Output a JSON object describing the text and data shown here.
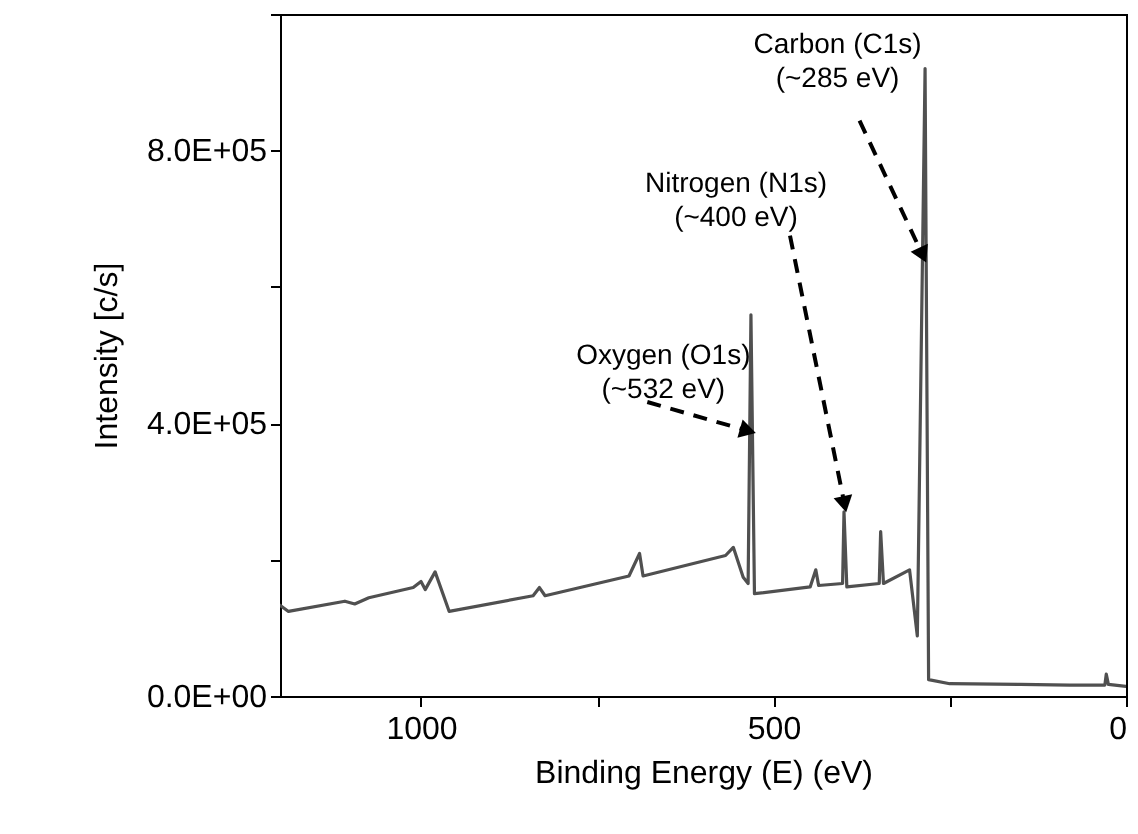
{
  "chart_data": {
    "type": "line",
    "xlabel": "Binding Energy (E) (eV)",
    "ylabel": "Intensity [c/s]",
    "color": "#505050",
    "x": [
      1200,
      1188,
      1108,
      1094,
      1074,
      1011,
      1000,
      994,
      980,
      960,
      841,
      832,
      824,
      705,
      690,
      685,
      568,
      557,
      543,
      536,
      532,
      527,
      448,
      440,
      436,
      402,
      400,
      396,
      350,
      348,
      344,
      307,
      296,
      285,
      280,
      250,
      150,
      80,
      30,
      28,
      25,
      0
    ],
    "values": [
      133000,
      124000,
      139000,
      135000,
      144000,
      159000,
      168000,
      156000,
      182000,
      124000,
      147000,
      159000,
      147000,
      176000,
      209000,
      176000,
      206000,
      218000,
      174000,
      165000,
      559000,
      150000,
      160000,
      185000,
      162000,
      165000,
      270000,
      160000,
      165000,
      241000,
      165000,
      185000,
      88000,
      920000,
      24000,
      18000,
      17000,
      16000,
      16000,
      32000,
      17000,
      14000
    ],
    "xlim": [
      1200,
      0
    ],
    "ylim": [
      0,
      1000000
    ],
    "xticks": [
      1000,
      {
        "value": 750,
        "label": null
      },
      500,
      {
        "value": 250,
        "label": null
      },
      0
    ],
    "yticks": [
      {
        "value": 0,
        "label": "0.0E+00"
      },
      {
        "value": 200000,
        "label": null
      },
      {
        "value": 400000,
        "label": "4.0E+05"
      },
      {
        "value": 600000,
        "label": null
      },
      {
        "value": 800000,
        "label": "8.0E+05"
      },
      {
        "value": 1000000,
        "label": null
      }
    ],
    "annotations": [
      {
        "text": "Oxygen (O1s)\n(~532 eV)",
        "x": 540,
        "y": 390000
      },
      {
        "text": "Nitrogen (N1s)\n(~400 eV)",
        "x": 400,
        "y": 285000
      },
      {
        "text": "Carbon (C1s)\n(~285 eV)",
        "x": 290,
        "y": 650000
      }
    ]
  }
}
